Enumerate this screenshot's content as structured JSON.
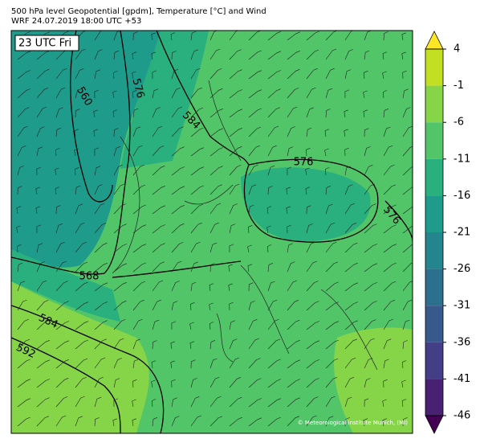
{
  "header": {
    "title": "500 hPa level Geopotential [gpdm], Temperature [°C] and Wind",
    "subtitle": "WRF 24.07.2019 18:00 UTC +53"
  },
  "map": {
    "time_label": "23 UTC Fri",
    "contour_labels": [
      "560",
      "576",
      "584",
      "576",
      "576",
      "568",
      "584",
      "592"
    ],
    "copyright": "© Meteorological Institute Munich, (MI)"
  },
  "colorbar": {
    "ticks": [
      4,
      -1,
      -6,
      -11,
      -16,
      -21,
      -26,
      -31,
      -36,
      -41,
      -46
    ],
    "colors": [
      "#c2df23",
      "#86d549",
      "#52c569",
      "#2ab07f",
      "#1e9b8a",
      "#25858e",
      "#2d708e",
      "#38598c",
      "#433e85",
      "#482173"
    ],
    "over_color": "#fde725",
    "under_color": "#440154"
  }
}
